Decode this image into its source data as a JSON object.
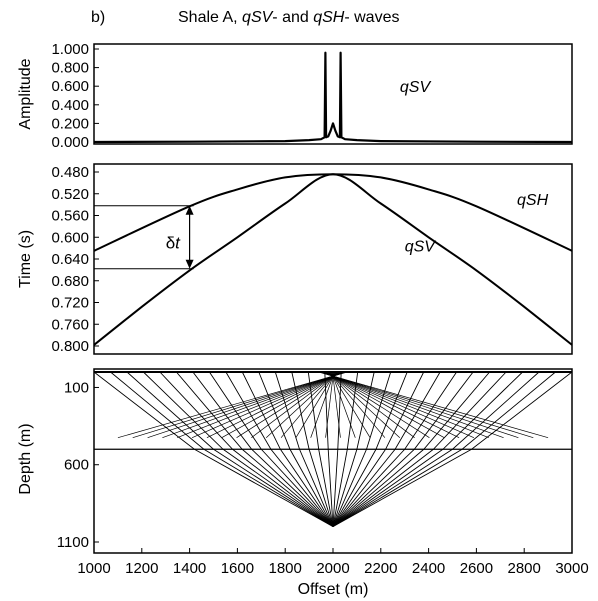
{
  "figure": {
    "panel_label": "b)",
    "title_prefix": "Shale A, ",
    "title_qsv": "qSV",
    "title_mid": "- and ",
    "title_qsh": "qSH",
    "title_suffix": "- waves",
    "xlabel": "Offset (m)"
  },
  "chart_data": [
    {
      "name": "amplitude",
      "type": "line",
      "ylabel": "Amplitude",
      "xlim": [
        1000,
        3000
      ],
      "ylim": [
        0,
        1
      ],
      "yticks": [
        "1.000",
        "0.800",
        "0.600",
        "0.400",
        "0.200",
        "0.000"
      ],
      "ytick_values": [
        1.0,
        0.8,
        0.6,
        0.4,
        0.2,
        0.0
      ],
      "series": [
        {
          "name": "qSV",
          "x": [
            1000,
            1400,
            1800,
            1900,
            1950,
            1965,
            1968,
            1971,
            1980,
            1990,
            2000,
            2010,
            2020,
            2029,
            2032,
            2035,
            2050,
            2100,
            2200,
            2600,
            3000
          ],
          "y": [
            0.0,
            0.003,
            0.01,
            0.02,
            0.03,
            0.05,
            0.96,
            0.05,
            0.06,
            0.12,
            0.2,
            0.12,
            0.06,
            0.05,
            0.96,
            0.05,
            0.03,
            0.02,
            0.01,
            0.003,
            0.0
          ]
        }
      ],
      "annotations": [
        {
          "text": "qSV",
          "x": 2280,
          "y": 0.6
        }
      ]
    },
    {
      "name": "traveltime",
      "type": "line",
      "ylabel": "Time (s)",
      "xlim": [
        1000,
        3000
      ],
      "ylim": [
        0.48,
        0.8
      ],
      "y_inverted": true,
      "yticks": [
        "0.480",
        "0.520",
        "0.560",
        "0.600",
        "0.640",
        "0.680",
        "0.720",
        "0.760",
        "0.800"
      ],
      "ytick_values": [
        0.48,
        0.52,
        0.56,
        0.6,
        0.64,
        0.68,
        0.72,
        0.76,
        0.8
      ],
      "series": [
        {
          "name": "qSH",
          "x": [
            1000,
            1400,
            1600,
            1800,
            2000,
            2200,
            2400,
            2600,
            3000
          ],
          "y": [
            0.625,
            0.543,
            0.512,
            0.49,
            0.484,
            0.49,
            0.512,
            0.543,
            0.625
          ]
        },
        {
          "name": "qSV",
          "x": [
            1000,
            1200,
            1400,
            1600,
            1800,
            2000,
            2200,
            2400,
            2600,
            2800,
            3000
          ],
          "y": [
            0.798,
            0.728,
            0.661,
            0.6,
            0.538,
            0.484,
            0.538,
            0.6,
            0.661,
            0.728,
            0.798
          ]
        }
      ],
      "annotations": [
        {
          "text": "qSH",
          "x": 2770,
          "y": 0.53
        },
        {
          "text": "qSV",
          "x": 2300,
          "y": 0.615
        },
        {
          "text": "δt",
          "x": 1300,
          "y": 0.61
        }
      ],
      "delta_t": {
        "x": 1400,
        "y_top": 0.542,
        "y_bottom": 0.658,
        "label_symbol": "δ",
        "label_var": "t"
      }
    },
    {
      "name": "rays",
      "type": "line",
      "ylabel": "Depth (m)",
      "xlim": [
        1000,
        3000
      ],
      "ylim": [
        0,
        1100
      ],
      "y_inverted": true,
      "yticks": [
        "100",
        "600",
        "1100"
      ],
      "ytick_values": [
        100,
        600,
        1100
      ],
      "xticks": [
        "1000",
        "1200",
        "1400",
        "1600",
        "1800",
        "2000",
        "2200",
        "2400",
        "2600",
        "2800",
        "3000"
      ],
      "xtick_values": [
        1000,
        1200,
        1400,
        1600,
        1800,
        2000,
        2200,
        2400,
        2600,
        2800,
        3000
      ],
      "source_offset": 2000,
      "interface_depth": 500,
      "bottom_depth": 1000
    }
  ]
}
